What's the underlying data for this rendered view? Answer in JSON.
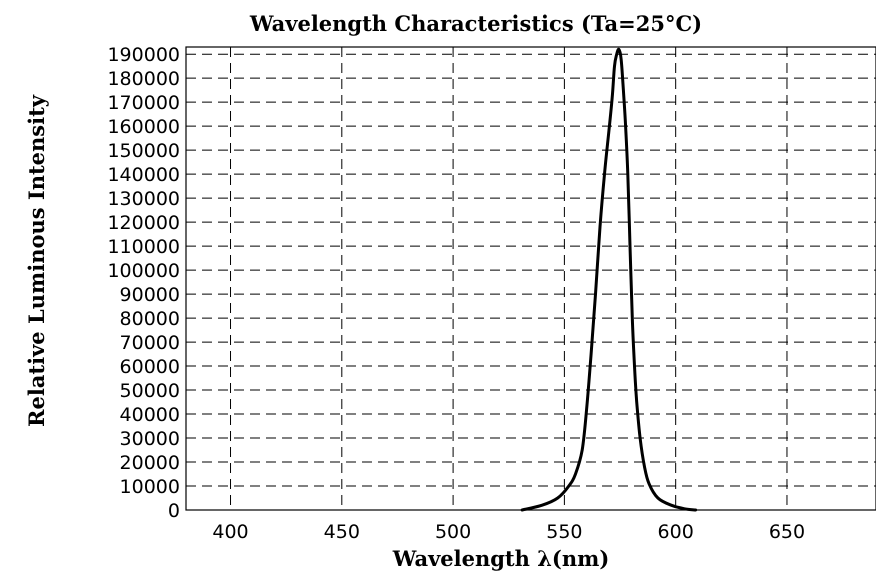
{
  "chart_data": {
    "type": "line",
    "title": "Wavelength Characteristics (Ta=25°C)",
    "xlabel": "Wavelength λ(nm)",
    "ylabel": "Relative Luminous Intensity",
    "xlim": [
      380,
      690
    ],
    "ylim": [
      0,
      193000
    ],
    "xticks": [
      400,
      450,
      500,
      550,
      600,
      650
    ],
    "yticks": [
      0,
      10000,
      20000,
      30000,
      40000,
      50000,
      60000,
      70000,
      80000,
      90000,
      100000,
      110000,
      120000,
      130000,
      140000,
      150000,
      160000,
      170000,
      180000,
      190000
    ],
    "grid": true,
    "series": [
      {
        "x": [
          531,
          540,
          547,
          552,
          555,
          558,
          560,
          562,
          564,
          566,
          568,
          570,
          571.5,
          572.5,
          573.5,
          574.5,
          575.5,
          576.5,
          577.5,
          578.5,
          579.5,
          580.5,
          581.5,
          582.5,
          584,
          586,
          588,
          592,
          598,
          604,
          609
        ],
        "y": [
          0,
          2000,
          5000,
          10000,
          15000,
          25000,
          42000,
          65000,
          90000,
          118000,
          140000,
          158000,
          172000,
          185000,
          190000,
          192000,
          188000,
          175000,
          160000,
          140000,
          110000,
          80000,
          60000,
          45000,
          30000,
          18000,
          11000,
          5000,
          2000,
          500,
          0
        ]
      }
    ]
  }
}
